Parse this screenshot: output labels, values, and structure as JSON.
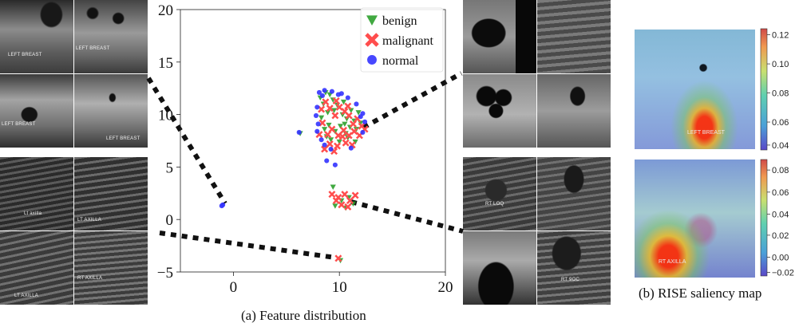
{
  "captions": {
    "feature": "(a) Feature distribution",
    "saliency": "(b) RISE saliency map"
  },
  "panels": {
    "top_left": [
      "LEFT BREAST",
      "LEFT BREAST",
      "LEFT BREAST",
      "LEFT BREAST"
    ],
    "bottom_left": [
      "Lt axilla",
      "LT AXILLA",
      "LT AXILLA",
      "RT AXILLA"
    ],
    "top_right": [
      "",
      "",
      "",
      ""
    ],
    "bottom_right": [
      "RT LOQ",
      "",
      "",
      "RT 9OC"
    ]
  },
  "saliency": {
    "maps": [
      {
        "label": "LEFT BREAST",
        "colorbar_ticks": [
          "0.12",
          "0.10",
          "0.08",
          "0.06",
          "0.04"
        ]
      },
      {
        "label": "RT AXILLA",
        "colorbar_ticks": [
          "0.08",
          "0.06",
          "0.04",
          "0.02",
          "0.00",
          "−0.02"
        ]
      }
    ]
  },
  "chart_data": {
    "type": "scatter",
    "title": "",
    "xlabel": "",
    "ylabel": "",
    "xlim": [
      -5,
      20
    ],
    "ylim": [
      -5,
      20
    ],
    "xticks": [
      "0",
      "10",
      "20"
    ],
    "yticks": [
      "20",
      "15",
      "10",
      "5",
      "0",
      "−5"
    ],
    "grid": false,
    "legend_position": "top-right",
    "series": [
      {
        "name": "benign",
        "marker": "triangle-down",
        "color": "#2ca02c",
        "points": [
          [
            8.2,
            11.6
          ],
          [
            8.5,
            11.0
          ],
          [
            8.9,
            10.2
          ],
          [
            9.4,
            11.4
          ],
          [
            9.8,
            10.9
          ],
          [
            10.3,
            10.0
          ],
          [
            10.7,
            9.6
          ],
          [
            11.1,
            10.4
          ],
          [
            11.4,
            9.4
          ],
          [
            9.0,
            9.0
          ],
          [
            8.6,
            8.6
          ],
          [
            9.6,
            8.4
          ],
          [
            10.1,
            8.9
          ],
          [
            10.6,
            8.2
          ],
          [
            11.0,
            8.8
          ],
          [
            11.6,
            8.6
          ],
          [
            12.0,
            9.2
          ],
          [
            8.3,
            9.7
          ],
          [
            9.2,
            7.6
          ],
          [
            10.0,
            7.4
          ],
          [
            10.8,
            7.8
          ],
          [
            11.5,
            7.4
          ],
          [
            9.5,
            10.4
          ],
          [
            10.4,
            11.2
          ],
          [
            8.8,
            7.9
          ],
          [
            6.3,
            8.2
          ],
          [
            10.2,
            1.8
          ],
          [
            10.9,
            2.1
          ],
          [
            9.6,
            1.3
          ],
          [
            10.6,
            1.1
          ],
          [
            11.3,
            1.5
          ],
          [
            9.4,
            3.1
          ],
          [
            10.1,
            -3.9
          ],
          [
            8.7,
            12.1
          ],
          [
            11.8,
            10.2
          ],
          [
            9.1,
            11.9
          ],
          [
            10.5,
            9.1
          ]
        ]
      },
      {
        "name": "malignant",
        "marker": "x",
        "color": "#ff4d4d",
        "points": [
          [
            8.7,
            11.2
          ],
          [
            9.1,
            10.6
          ],
          [
            9.6,
            9.9
          ],
          [
            10.0,
            10.7
          ],
          [
            10.5,
            10.3
          ],
          [
            10.9,
            9.9
          ],
          [
            11.3,
            9.1
          ],
          [
            11.7,
            9.6
          ],
          [
            12.1,
            8.9
          ],
          [
            9.3,
            8.6
          ],
          [
            8.9,
            8.1
          ],
          [
            9.9,
            8.0
          ],
          [
            10.4,
            8.5
          ],
          [
            10.9,
            8.0
          ],
          [
            11.4,
            8.4
          ],
          [
            11.9,
            8.0
          ],
          [
            8.4,
            9.2
          ],
          [
            9.1,
            7.2
          ],
          [
            9.8,
            7.0
          ],
          [
            10.6,
            7.3
          ],
          [
            11.2,
            7.1
          ],
          [
            8.6,
            6.7
          ],
          [
            9.5,
            6.5
          ],
          [
            8.3,
            10.5
          ],
          [
            10.8,
            10.8
          ],
          [
            9.9,
            2.1
          ],
          [
            10.5,
            2.4
          ],
          [
            11.0,
            1.8
          ],
          [
            10.2,
            1.4
          ],
          [
            9.7,
            1.8
          ],
          [
            11.5,
            2.3
          ],
          [
            10.8,
            1.2
          ],
          [
            9.3,
            2.4
          ],
          [
            9.9,
            -3.7
          ],
          [
            8.1,
            8.1
          ],
          [
            12.4,
            8.6
          ],
          [
            9.7,
            11.3
          ],
          [
            10.3,
            7.9
          ]
        ]
      },
      {
        "name": "normal",
        "marker": "circle",
        "color": "#3333ff",
        "points": [
          [
            8.1,
            12.1
          ],
          [
            8.6,
            12.3
          ],
          [
            9.3,
            12.2
          ],
          [
            9.9,
            11.9
          ],
          [
            10.8,
            11.6
          ],
          [
            11.6,
            11.0
          ],
          [
            12.2,
            10.1
          ],
          [
            12.4,
            9.3
          ],
          [
            12.2,
            8.3
          ],
          [
            7.9,
            10.7
          ],
          [
            7.8,
            9.9
          ],
          [
            8.0,
            9.1
          ],
          [
            7.9,
            8.4
          ],
          [
            8.3,
            7.6
          ],
          [
            8.6,
            7.1
          ],
          [
            9.2,
            6.7
          ],
          [
            8.8,
            5.6
          ],
          [
            9.6,
            5.2
          ],
          [
            6.2,
            8.3
          ],
          [
            -1.1,
            1.3
          ],
          [
            -1.0,
            1.4
          ],
          [
            11.1,
            6.8
          ],
          [
            8.4,
            11.8
          ],
          [
            12.0,
            9.8
          ],
          [
            10.2,
            12.0
          ]
        ]
      }
    ]
  }
}
